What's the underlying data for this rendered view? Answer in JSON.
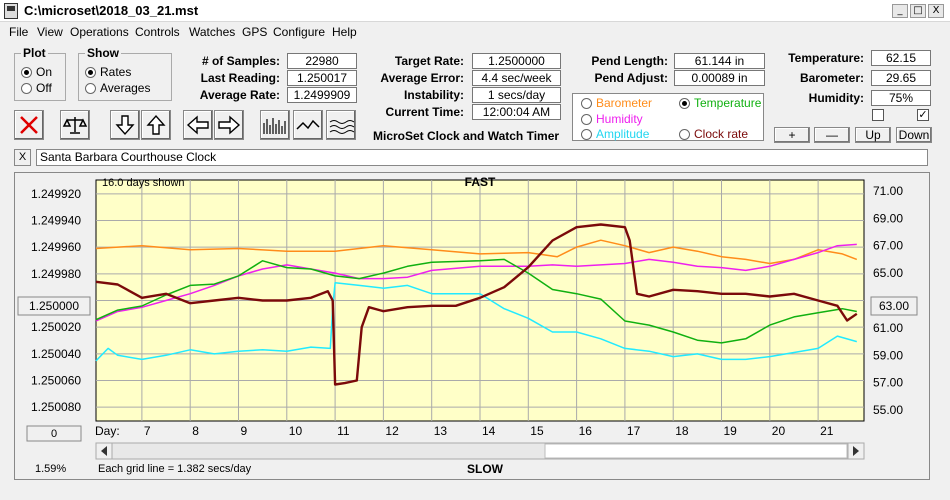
{
  "window": {
    "title": "C:\\microset\\2018_03_21.mst",
    "min": "_",
    "max": "□",
    "close": "X"
  },
  "menu": [
    "File",
    "View",
    "Operations",
    "Controls",
    "Watches",
    "GPS",
    "Configure",
    "Help"
  ],
  "plot": {
    "title": "Plot",
    "on": "On",
    "off": "Off",
    "selected": "On"
  },
  "show": {
    "title": "Show",
    "rates": "Rates",
    "averages": "Averages",
    "selected": "Rates"
  },
  "stats": {
    "samples_label": "# of Samples:",
    "samples": "22980",
    "last_label": "Last Reading:",
    "last": "1.250017",
    "avg_label": "Average Rate:",
    "avg": "1.2499909",
    "target_label": "Target Rate:",
    "target": "1.2500000",
    "error_label": "Average Error:",
    "error": "4.4 sec/week",
    "instab_label": "Instability:",
    "instab": "1 secs/day",
    "time_label": "Current Time:",
    "time": "12:00:04 AM",
    "pend_len_label": "Pend Length:",
    "pend_len": "61.144 in",
    "pend_adj_label": "Pend Adjust:",
    "pend_adj": "0.00089 in",
    "temp_label": "Temperature:",
    "temp": "62.15",
    "baro_label": "Barometer:",
    "baro": "29.65",
    "hum_label": "Humidity:",
    "hum": "75%"
  },
  "app_heading": "MicroSet Clock and Watch Timer",
  "legend": {
    "barometer": "Barometer",
    "temperature": "Temperature",
    "humidity": "Humidity",
    "amplitude": "Amplitude",
    "clock_rate": "Clock rate",
    "selected": "Temperature"
  },
  "scale_buttons": {
    "plus": "+",
    "minus": "—",
    "up": "Up",
    "down": "Down"
  },
  "clock_name": "Santa Barbara Courthouse Clock",
  "clock_name_close": "X",
  "chart": {
    "days_shown": "16.0 days shown",
    "top_label": "FAST",
    "bottom_label": "SLOW",
    "day_label": "Day:",
    "grid_note": "Each grid line = 1.382 secs/day",
    "percent": "1.59%",
    "left_button": "1.250000",
    "right_button": "63.00",
    "zero_button": "0"
  },
  "colors": {
    "barometer": "#ff8c1a",
    "temperature": "#10b010",
    "humidity": "#ee20ee",
    "amplitude": "#22eaff",
    "clock_rate": "#7b0a0a",
    "plot_bg": "#ffffc8",
    "grid": "#aaaaaa"
  },
  "chart_data": {
    "type": "line",
    "xlabel": "Day:",
    "x_ticks": [
      7,
      8,
      9,
      10,
      11,
      12,
      13,
      14,
      15,
      16,
      17,
      18,
      19,
      20,
      21
    ],
    "xlim": [
      6.05,
      21.95
    ],
    "y_left_ticks": [
      "1.249920",
      "1.249940",
      "1.249960",
      "1.249980",
      "1.250000",
      "1.250020",
      "1.250040",
      "1.250060",
      "1.250080"
    ],
    "y_left_lim": [
      1.2499096,
      1.2500904
    ],
    "y_left_inverted": true,
    "y_right_ticks": [
      "71.00",
      "69.00",
      "67.00",
      "65.00",
      "63.00",
      "61.00",
      "59.00",
      "57.00",
      "55.00"
    ],
    "y_right_lim": [
      54.2,
      71.8
    ],
    "series": [
      {
        "name": "Clock rate",
        "axis": "left",
        "points": [
          [
            6.05,
            1.249986
          ],
          [
            6.5,
            1.249988
          ],
          [
            7.0,
            1.249998
          ],
          [
            7.5,
            1.249995
          ],
          [
            8.0,
            1.250002
          ],
          [
            8.5,
            1.25
          ],
          [
            9.0,
            1.249998
          ],
          [
            9.5,
            1.25
          ],
          [
            10.0,
            1.25
          ],
          [
            10.5,
            1.249998
          ],
          [
            10.85,
            1.249993
          ],
          [
            10.95,
            1.25
          ],
          [
            11.0,
            1.250063
          ],
          [
            11.2,
            1.250062
          ],
          [
            11.45,
            1.25006
          ],
          [
            11.55,
            1.25002
          ],
          [
            11.7,
            1.250005
          ],
          [
            12.0,
            1.250008
          ],
          [
            12.5,
            1.250005
          ],
          [
            13.0,
            1.250004
          ],
          [
            13.5,
            1.250004
          ],
          [
            14.0,
            1.249998
          ],
          [
            14.5,
            1.24999
          ],
          [
            15.0,
            1.249975
          ],
          [
            15.5,
            1.249955
          ],
          [
            16.0,
            1.249945
          ],
          [
            16.5,
            1.249943
          ],
          [
            17.0,
            1.249945
          ],
          [
            17.1,
            1.249955
          ],
          [
            17.25,
            1.249995
          ],
          [
            17.5,
            1.249997
          ],
          [
            18.0,
            1.249992
          ],
          [
            18.5,
            1.249993
          ],
          [
            19.0,
            1.249995
          ],
          [
            19.5,
            1.249995
          ],
          [
            20.0,
            1.249997
          ],
          [
            20.5,
            1.249995
          ],
          [
            21.0,
            1.25
          ],
          [
            21.4,
            1.250004
          ],
          [
            21.6,
            1.250015
          ],
          [
            21.8,
            1.25001
          ]
        ]
      },
      {
        "name": "Barometer",
        "axis": "right",
        "points": [
          [
            6.05,
            66.8
          ],
          [
            7.0,
            67.0
          ],
          [
            8.0,
            66.7
          ],
          [
            9.0,
            66.8
          ],
          [
            10.0,
            66.6
          ],
          [
            11.0,
            66.6
          ],
          [
            12.0,
            67.0
          ],
          [
            13.0,
            66.7
          ],
          [
            14.0,
            66.4
          ],
          [
            15.0,
            66.5
          ],
          [
            15.6,
            66.2
          ],
          [
            16.0,
            66.9
          ],
          [
            16.5,
            67.4
          ],
          [
            17.0,
            67.0
          ],
          [
            17.5,
            66.5
          ],
          [
            18.0,
            66.9
          ],
          [
            18.5,
            66.6
          ],
          [
            19.0,
            66.2
          ],
          [
            19.5,
            66.0
          ],
          [
            20.0,
            65.7
          ],
          [
            20.5,
            66.0
          ],
          [
            21.0,
            66.7
          ],
          [
            21.5,
            66.4
          ],
          [
            21.8,
            66.0
          ]
        ]
      },
      {
        "name": "Temperature",
        "axis": "right",
        "points": [
          [
            6.05,
            61.6
          ],
          [
            6.5,
            62.3
          ],
          [
            7.0,
            62.6
          ],
          [
            7.5,
            63.4
          ],
          [
            8.0,
            64.1
          ],
          [
            8.5,
            64.2
          ],
          [
            9.0,
            64.8
          ],
          [
            9.5,
            65.9
          ],
          [
            10.0,
            65.4
          ],
          [
            10.5,
            65.3
          ],
          [
            11.0,
            64.8
          ],
          [
            11.5,
            64.6
          ],
          [
            12.0,
            65.0
          ],
          [
            12.5,
            65.5
          ],
          [
            13.0,
            65.8
          ],
          [
            14.0,
            65.9
          ],
          [
            14.5,
            66.0
          ],
          [
            15.0,
            65.0
          ],
          [
            15.5,
            63.8
          ],
          [
            16.0,
            63.5
          ],
          [
            16.5,
            63.1
          ],
          [
            17.0,
            61.5
          ],
          [
            17.5,
            61.2
          ],
          [
            18.0,
            60.7
          ],
          [
            18.5,
            60.1
          ],
          [
            19.0,
            59.9
          ],
          [
            19.5,
            60.2
          ],
          [
            20.0,
            61.2
          ],
          [
            20.5,
            61.8
          ],
          [
            21.0,
            62.1
          ],
          [
            21.5,
            62.4
          ],
          [
            21.8,
            62.2
          ]
        ]
      },
      {
        "name": "Humidity",
        "axis": "right",
        "points": [
          [
            6.05,
            61.5
          ],
          [
            6.5,
            62.2
          ],
          [
            7.0,
            62.5
          ],
          [
            7.5,
            63.0
          ],
          [
            8.0,
            63.5
          ],
          [
            8.5,
            64.1
          ],
          [
            9.0,
            64.8
          ],
          [
            9.5,
            65.3
          ],
          [
            10.0,
            65.6
          ],
          [
            10.5,
            65.3
          ],
          [
            11.0,
            65.0
          ],
          [
            11.5,
            64.6
          ],
          [
            12.0,
            64.6
          ],
          [
            12.5,
            64.7
          ],
          [
            13.0,
            65.2
          ],
          [
            14.0,
            65.5
          ],
          [
            15.0,
            65.5
          ],
          [
            15.5,
            65.6
          ],
          [
            16.0,
            65.5
          ],
          [
            17.0,
            65.7
          ],
          [
            17.5,
            66.0
          ],
          [
            18.0,
            65.8
          ],
          [
            18.5,
            65.5
          ],
          [
            19.0,
            65.4
          ],
          [
            19.5,
            65.2
          ],
          [
            20.0,
            65.5
          ],
          [
            20.5,
            66.0
          ],
          [
            21.0,
            66.5
          ],
          [
            21.4,
            67.0
          ],
          [
            21.8,
            67.1
          ]
        ]
      },
      {
        "name": "Amplitude",
        "axis": "right",
        "points": [
          [
            6.05,
            58.6
          ],
          [
            6.3,
            59.5
          ],
          [
            6.5,
            59.0
          ],
          [
            7.0,
            58.7
          ],
          [
            7.5,
            59.0
          ],
          [
            8.0,
            59.4
          ],
          [
            8.5,
            59.1
          ],
          [
            9.0,
            59.3
          ],
          [
            9.5,
            59.4
          ],
          [
            10.0,
            59.3
          ],
          [
            10.5,
            59.6
          ],
          [
            10.9,
            59.5
          ],
          [
            10.95,
            62.5
          ],
          [
            11.0,
            64.3
          ],
          [
            11.5,
            64.1
          ],
          [
            12.0,
            63.9
          ],
          [
            12.5,
            64.1
          ],
          [
            13.0,
            63.5
          ],
          [
            13.5,
            63.5
          ],
          [
            14.0,
            63.5
          ],
          [
            14.5,
            62.4
          ],
          [
            15.0,
            61.7
          ],
          [
            15.5,
            60.7
          ],
          [
            16.0,
            60.7
          ],
          [
            16.5,
            60.2
          ],
          [
            17.0,
            59.5
          ],
          [
            17.5,
            59.3
          ],
          [
            18.0,
            58.9
          ],
          [
            18.5,
            59.1
          ],
          [
            19.0,
            58.7
          ],
          [
            19.5,
            58.7
          ],
          [
            20.0,
            58.9
          ],
          [
            20.5,
            59.2
          ],
          [
            21.0,
            59.5
          ],
          [
            21.4,
            60.4
          ],
          [
            21.8,
            60.0
          ]
        ]
      }
    ]
  }
}
